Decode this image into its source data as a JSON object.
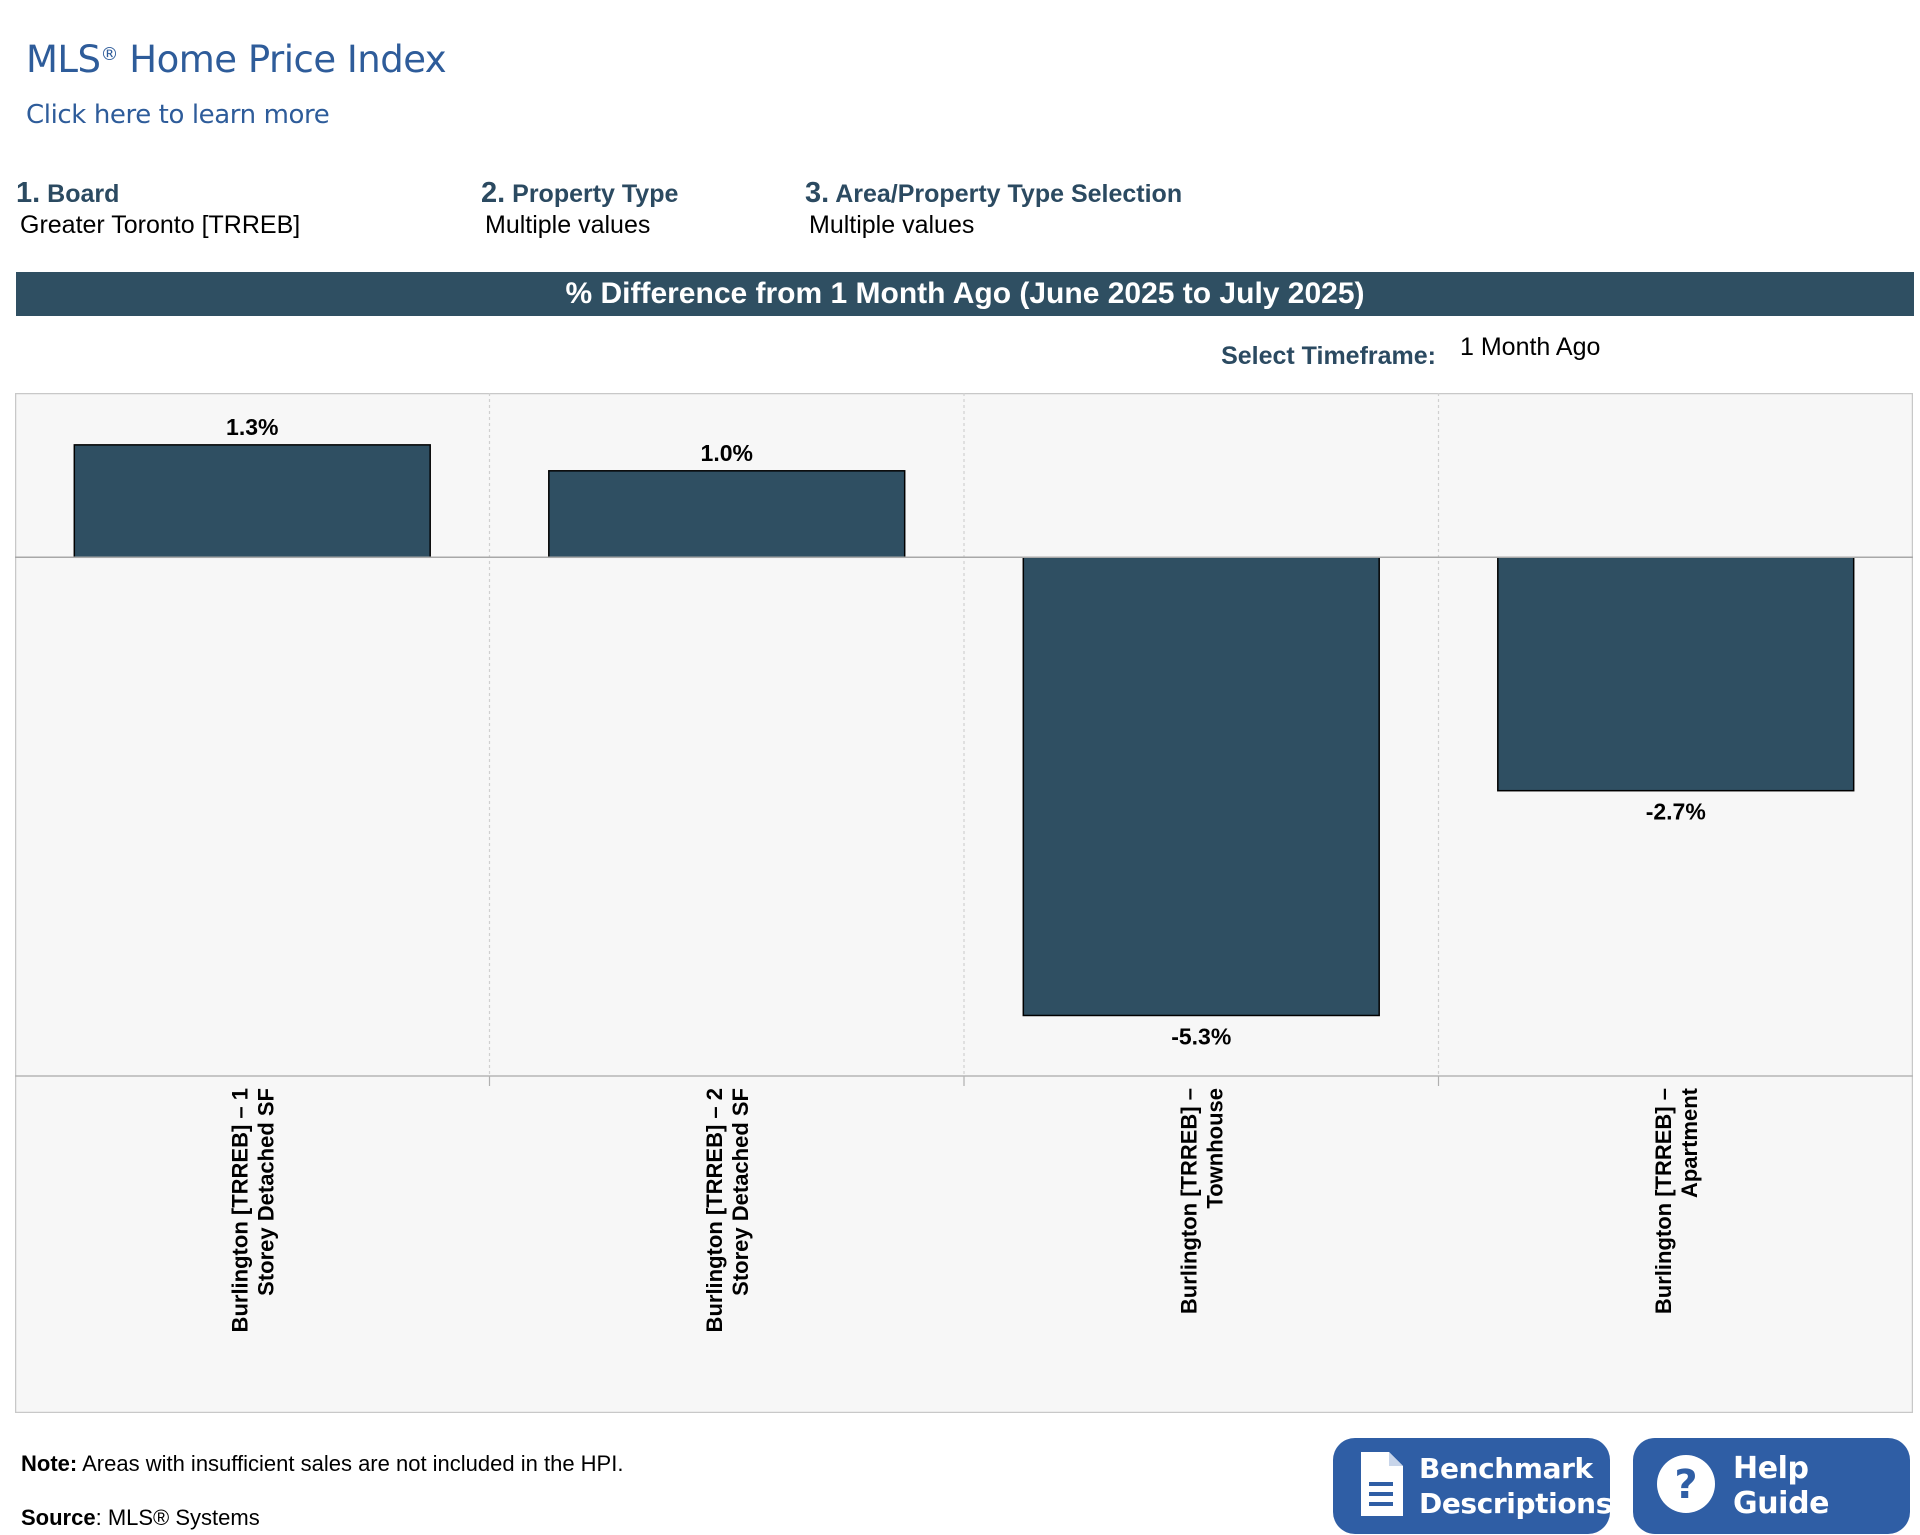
{
  "header": {
    "title_main": "MLS",
    "title_reg": "®",
    "title_rest": " Home Price Index",
    "learn_more": "Click here to learn more"
  },
  "filters": [
    {
      "num": "1.",
      "label": "Board",
      "value": "Greater Toronto [TRREB]"
    },
    {
      "num": "2.",
      "label": "Property Type",
      "value": "Multiple values"
    },
    {
      "num": "3.",
      "label": "Area/Property Type Selection",
      "value": "Multiple values"
    }
  ],
  "timeframe": {
    "label": "Select Timeframe:",
    "value": "1 Month Ago"
  },
  "colors": {
    "bar": "#2f4f62",
    "banner": "#2f4f62",
    "heading": "#2b4a61",
    "link": "#2e5c9a",
    "button": "#2f5ea5",
    "plot_bg": "#f7f7f7"
  },
  "chart_data": {
    "type": "bar",
    "title": "% Difference from 1 Month Ago (June 2025 to July 2025)",
    "categories": [
      [
        "Burlington [TRREB] – 1",
        "Storey Detached SF"
      ],
      [
        "Burlington [TRREB] – 2",
        "Storey Detached SF"
      ],
      [
        "Burlington [TRREB] –",
        "Townhouse"
      ],
      [
        "Burlington [TRREB] –",
        "Apartment"
      ]
    ],
    "values": [
      1.3,
      1.0,
      -5.3,
      -2.7
    ],
    "data_labels": [
      "1.3%",
      "1.0%",
      "-5.3%",
      "-2.7%"
    ],
    "ylim": [
      -6.0,
      1.9
    ],
    "grid": true,
    "legend": "none"
  },
  "footer": {
    "note_label": "Note:",
    "note_text": " Areas with insufficient sales are not included in the HPI.",
    "source_label": "Source",
    "source_text": ": MLS® Systems"
  },
  "buttons": {
    "benchmark": {
      "line1": "Benchmark",
      "line2": "Descriptions",
      "icon": "document-icon"
    },
    "help": {
      "label": "Help Guide",
      "icon": "question-icon"
    }
  }
}
